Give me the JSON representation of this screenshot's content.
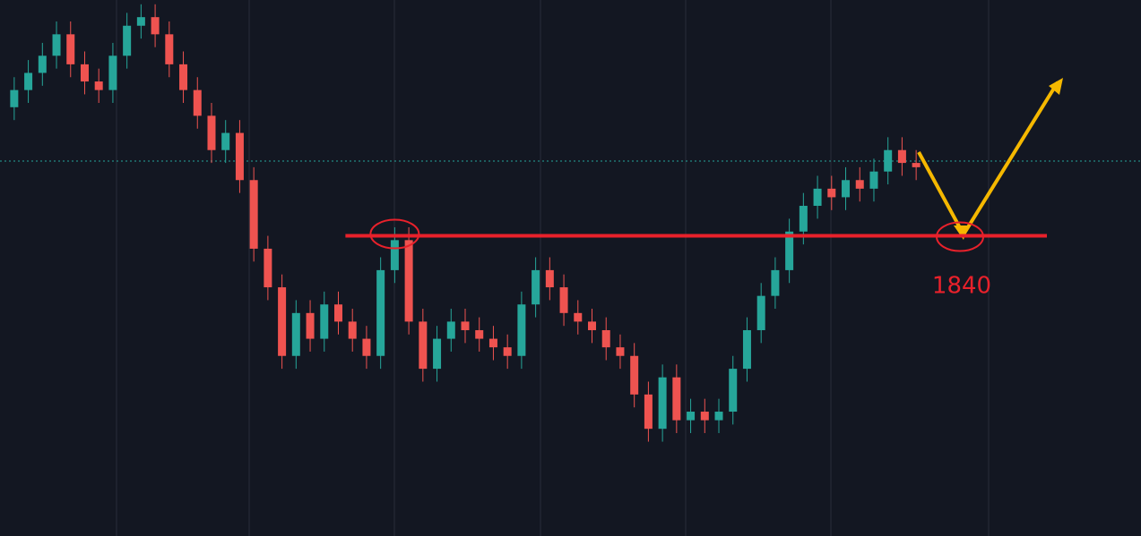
{
  "chart_data": {
    "type": "candlestick",
    "open": [
      1870,
      1874,
      1878,
      1882,
      1887,
      1880,
      1876,
      1874,
      1882,
      1889,
      1891,
      1887,
      1880,
      1874,
      1868,
      1860,
      1864,
      1853,
      1837,
      1828,
      1812,
      1822,
      1816,
      1824,
      1820,
      1816,
      1812,
      1832,
      1839,
      1820,
      1809,
      1816,
      1820,
      1818,
      1816,
      1814,
      1812,
      1824,
      1832,
      1828,
      1822,
      1820,
      1818,
      1814,
      1812,
      1803,
      1795,
      1807,
      1797,
      1799,
      1797,
      1799,
      1809,
      1818,
      1826,
      1832,
      1841,
      1847,
      1851,
      1849,
      1853,
      1851,
      1855,
      1860,
      1857
    ],
    "high": [
      1877,
      1881,
      1885,
      1890,
      1890,
      1883,
      1879,
      1885,
      1892,
      1894,
      1894,
      1890,
      1883,
      1877,
      1871,
      1867,
      1867,
      1856,
      1840,
      1831,
      1825,
      1825,
      1827,
      1827,
      1823,
      1819,
      1835,
      1842,
      1842,
      1823,
      1819,
      1823,
      1823,
      1821,
      1819,
      1817,
      1827,
      1835,
      1835,
      1831,
      1825,
      1823,
      1821,
      1817,
      1815,
      1806,
      1810,
      1810,
      1802,
      1802,
      1802,
      1812,
      1821,
      1829,
      1835,
      1844,
      1850,
      1854,
      1854,
      1856,
      1856,
      1858,
      1863,
      1863,
      1860
    ],
    "low": [
      1867,
      1871,
      1875,
      1879,
      1877,
      1873,
      1871,
      1871,
      1879,
      1886,
      1884,
      1877,
      1871,
      1865,
      1857,
      1857,
      1850,
      1834,
      1825,
      1809,
      1809,
      1813,
      1813,
      1817,
      1813,
      1809,
      1809,
      1829,
      1817,
      1806,
      1806,
      1813,
      1815,
      1813,
      1811,
      1809,
      1809,
      1821,
      1825,
      1819,
      1817,
      1815,
      1811,
      1809,
      1800,
      1792,
      1792,
      1794,
      1794,
      1794,
      1794,
      1796,
      1806,
      1815,
      1823,
      1829,
      1838,
      1844,
      1846,
      1846,
      1848,
      1848,
      1852,
      1854,
      1853
    ],
    "close": [
      1874,
      1878,
      1882,
      1887,
      1880,
      1876,
      1874,
      1882,
      1889,
      1891,
      1887,
      1880,
      1874,
      1868,
      1860,
      1864,
      1853,
      1837,
      1828,
      1812,
      1822,
      1816,
      1824,
      1820,
      1816,
      1812,
      1832,
      1839,
      1820,
      1809,
      1816,
      1820,
      1818,
      1816,
      1814,
      1812,
      1824,
      1832,
      1828,
      1822,
      1820,
      1818,
      1814,
      1812,
      1803,
      1795,
      1807,
      1797,
      1799,
      1797,
      1799,
      1809,
      1818,
      1826,
      1832,
      1841,
      1847,
      1851,
      1849,
      1853,
      1851,
      1855,
      1860,
      1857,
      1856
    ],
    "up_color": "#26a69a",
    "down_color": "#ef5350",
    "ylim": [
      1770,
      1895
    ],
    "support": {
      "value": 1840,
      "label": "1840",
      "color": "#e8212b"
    }
  }
}
